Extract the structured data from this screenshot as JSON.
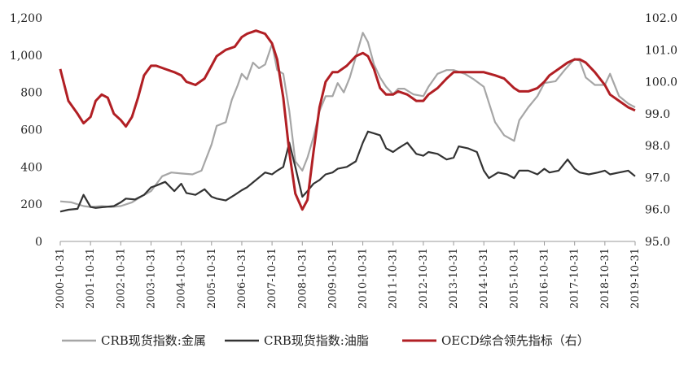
{
  "chart_data": {
    "type": "line",
    "title": "",
    "xlabel": "",
    "ylabel_left": "",
    "ylabel_right": "",
    "x_ticks": [
      "2000-10-31",
      "2001-10-31",
      "2002-10-31",
      "2003-10-31",
      "2004-10-31",
      "2005-10-31",
      "2006-10-31",
      "2007-10-31",
      "2008-10-31",
      "2009-10-31",
      "2010-10-31",
      "2011-10-31",
      "2012-10-31",
      "2013-10-31",
      "2014-10-31",
      "2015-10-31",
      "2016-10-31",
      "2017-10-31",
      "2018-10-31",
      "2019-10-31"
    ],
    "xlim": [
      2000.83,
      2019.83
    ],
    "ylim_left": [
      0,
      1200
    ],
    "ylim_right": [
      95.0,
      102.0
    ],
    "y_ticks_left": [
      "0",
      "200",
      "400",
      "600",
      "800",
      "1,000",
      "1,200"
    ],
    "y_ticks_right": [
      "95.0",
      "96.0",
      "97.0",
      "98.0",
      "99.0",
      "100.0",
      "101.0",
      "102.0"
    ],
    "legend_position": "bottom",
    "grid": false,
    "series": [
      {
        "name": "CRB现货指数:金属",
        "axis": "left",
        "color": "#a6a6a6",
        "x": [
          2000.83,
          2001.2,
          2001.6,
          2001.83,
          2002.2,
          2002.5,
          2002.83,
          2003.2,
          2003.5,
          2003.83,
          2004.2,
          2004.5,
          2004.83,
          2005.2,
          2005.5,
          2005.83,
          2006.0,
          2006.3,
          2006.5,
          2006.7,
          2006.83,
          2007.0,
          2007.2,
          2007.4,
          2007.6,
          2007.83,
          2008.0,
          2008.2,
          2008.4,
          2008.6,
          2008.83,
          2009.0,
          2009.2,
          2009.4,
          2009.6,
          2009.83,
          2010.0,
          2010.2,
          2010.4,
          2010.6,
          2010.83,
          2011.0,
          2011.2,
          2011.4,
          2011.6,
          2011.83,
          2012.0,
          2012.2,
          2012.5,
          2012.83,
          2013.0,
          2013.3,
          2013.6,
          2013.83,
          2014.2,
          2014.5,
          2014.83,
          2015.2,
          2015.5,
          2015.83,
          2016.0,
          2016.3,
          2016.6,
          2016.83,
          2017.2,
          2017.5,
          2017.83,
          2018.0,
          2018.2,
          2018.5,
          2018.83,
          2019.0,
          2019.3,
          2019.6,
          2019.83
        ],
        "values": [
          215,
          210,
          190,
          185,
          190,
          185,
          190,
          210,
          240,
          270,
          350,
          370,
          365,
          360,
          380,
          520,
          620,
          640,
          760,
          840,
          900,
          870,
          960,
          930,
          950,
          1060,
          920,
          900,
          700,
          430,
          380,
          450,
          560,
          700,
          780,
          780,
          850,
          800,
          880,
          990,
          1120,
          1070,
          950,
          880,
          830,
          790,
          820,
          820,
          790,
          780,
          830,
          900,
          920,
          920,
          900,
          870,
          830,
          640,
          570,
          540,
          650,
          720,
          780,
          850,
          860,
          920,
          980,
          970,
          880,
          840,
          840,
          900,
          780,
          740,
          720
        ]
      },
      {
        "name": "CRB现货指数:油脂",
        "axis": "left",
        "color": "#333333",
        "x": [
          2000.83,
          2001.1,
          2001.4,
          2001.6,
          2001.83,
          2002.0,
          2002.3,
          2002.6,
          2002.83,
          2003.0,
          2003.3,
          2003.6,
          2003.83,
          2004.0,
          2004.3,
          2004.6,
          2004.83,
          2005.0,
          2005.3,
          2005.6,
          2005.83,
          2006.0,
          2006.3,
          2006.6,
          2006.83,
          2007.0,
          2007.3,
          2007.6,
          2007.83,
          2008.0,
          2008.2,
          2008.4,
          2008.6,
          2008.83,
          2009.0,
          2009.2,
          2009.4,
          2009.6,
          2009.83,
          2010.0,
          2010.3,
          2010.6,
          2010.83,
          2011.0,
          2011.2,
          2011.4,
          2011.6,
          2011.83,
          2012.0,
          2012.3,
          2012.6,
          2012.83,
          2013.0,
          2013.3,
          2013.6,
          2013.83,
          2014.0,
          2014.3,
          2014.6,
          2014.83,
          2015.0,
          2015.3,
          2015.6,
          2015.83,
          2016.0,
          2016.3,
          2016.6,
          2016.83,
          2017.0,
          2017.3,
          2017.6,
          2017.83,
          2018.0,
          2018.3,
          2018.6,
          2018.83,
          2019.0,
          2019.3,
          2019.6,
          2019.83
        ],
        "values": [
          160,
          170,
          175,
          250,
          185,
          180,
          185,
          190,
          210,
          230,
          225,
          250,
          290,
          300,
          320,
          270,
          310,
          260,
          250,
          280,
          240,
          230,
          220,
          250,
          275,
          290,
          330,
          370,
          360,
          380,
          400,
          530,
          400,
          240,
          270,
          310,
          330,
          360,
          370,
          390,
          400,
          430,
          530,
          590,
          580,
          570,
          500,
          480,
          500,
          530,
          470,
          460,
          480,
          470,
          440,
          450,
          510,
          500,
          480,
          380,
          340,
          370,
          360,
          340,
          380,
          380,
          360,
          390,
          370,
          380,
          440,
          390,
          370,
          360,
          370,
          380,
          360,
          370,
          380,
          350
        ]
      },
      {
        "name": "OECD综合领先指标（右）",
        "axis": "right",
        "color": "#b11f24",
        "x": [
          2000.83,
          2001.1,
          2001.4,
          2001.6,
          2001.83,
          2002.0,
          2002.2,
          2002.4,
          2002.6,
          2002.83,
          2003.0,
          2003.2,
          2003.4,
          2003.6,
          2003.83,
          2004.0,
          2004.3,
          2004.6,
          2004.83,
          2005.0,
          2005.3,
          2005.6,
          2005.83,
          2006.0,
          2006.3,
          2006.6,
          2006.83,
          2007.0,
          2007.3,
          2007.6,
          2007.83,
          2008.0,
          2008.2,
          2008.4,
          2008.6,
          2008.83,
          2009.0,
          2009.2,
          2009.4,
          2009.6,
          2009.83,
          2010.0,
          2010.3,
          2010.6,
          2010.83,
          2011.0,
          2011.2,
          2011.4,
          2011.6,
          2011.83,
          2012.0,
          2012.3,
          2012.6,
          2012.83,
          2013.0,
          2013.3,
          2013.6,
          2013.83,
          2014.2,
          2014.6,
          2014.83,
          2015.2,
          2015.5,
          2015.83,
          2016.0,
          2016.3,
          2016.6,
          2016.83,
          2017.0,
          2017.3,
          2017.6,
          2017.83,
          2018.0,
          2018.2,
          2018.5,
          2018.83,
          2019.0,
          2019.3,
          2019.6,
          2019.83
        ],
        "values": [
          100.4,
          99.4,
          99.0,
          98.7,
          98.9,
          99.4,
          99.6,
          99.5,
          99.0,
          98.8,
          98.6,
          98.9,
          99.5,
          100.2,
          100.5,
          100.5,
          100.4,
          100.3,
          100.2,
          100.0,
          99.9,
          100.1,
          100.5,
          100.8,
          101.0,
          101.1,
          101.4,
          101.5,
          101.6,
          101.5,
          101.2,
          100.7,
          99.5,
          97.8,
          96.5,
          96.0,
          96.3,
          97.8,
          99.2,
          100.0,
          100.3,
          100.3,
          100.5,
          100.8,
          100.9,
          100.8,
          100.4,
          99.8,
          99.6,
          99.6,
          99.7,
          99.6,
          99.4,
          99.4,
          99.6,
          99.8,
          100.1,
          100.3,
          100.3,
          100.3,
          100.3,
          100.2,
          100.1,
          99.8,
          99.7,
          99.7,
          99.8,
          100.0,
          100.2,
          100.4,
          100.6,
          100.7,
          100.7,
          100.6,
          100.3,
          99.9,
          99.6,
          99.4,
          99.2,
          99.1
        ]
      }
    ]
  }
}
